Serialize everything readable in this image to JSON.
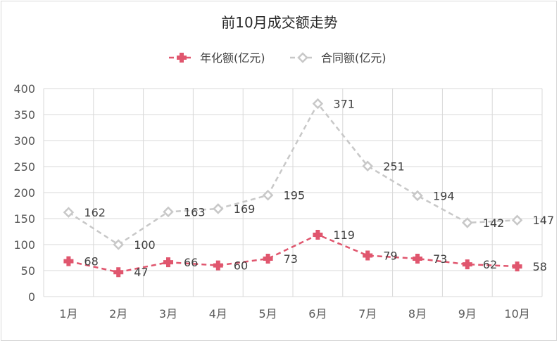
{
  "chart_data": {
    "type": "line",
    "title": "前10月成交额走势",
    "categories": [
      "1月",
      "2月",
      "3月",
      "4月",
      "5月",
      "6月",
      "7月",
      "8月",
      "9月",
      "10月"
    ],
    "series": [
      {
        "name": "年化额(亿元)",
        "values": [
          68,
          47,
          66,
          60,
          73,
          119,
          79,
          73,
          62,
          58
        ],
        "color": "#e0566e",
        "marker": "plus",
        "line": "dashed"
      },
      {
        "name": "合同额(亿元)",
        "values": [
          162,
          100,
          163,
          169,
          195,
          371,
          251,
          194,
          142,
          147
        ],
        "color": "#c8c8c8",
        "marker": "diamond",
        "line": "dashed"
      }
    ],
    "ylim": [
      0,
      400
    ],
    "yticks": [
      0,
      50,
      100,
      150,
      200,
      250,
      300,
      350,
      400
    ],
    "grid": true,
    "legend_position": "top"
  }
}
